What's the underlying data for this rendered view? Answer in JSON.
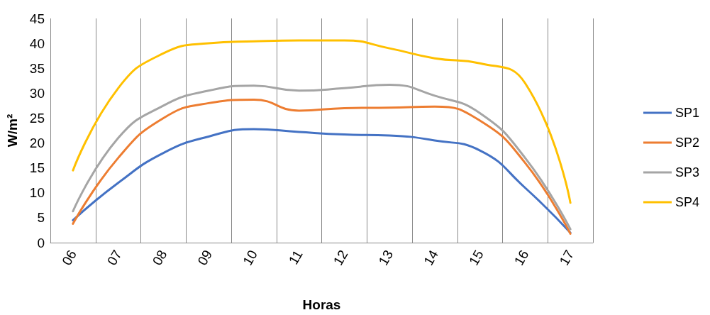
{
  "chart_data": {
    "type": "line",
    "xlabel": "Horas",
    "ylabel": "W/m²",
    "categories": [
      "06",
      "07",
      "08",
      "09",
      "10",
      "11",
      "12",
      "13",
      "14",
      "15",
      "16",
      "17"
    ],
    "series": [
      {
        "name": "SP1",
        "color": "#4472c4",
        "values": [
          4.5,
          12,
          18,
          21.3,
          22.8,
          22.2,
          21.7,
          21.5,
          20.5,
          18.5,
          11,
          2
        ]
      },
      {
        "name": "SP2",
        "color": "#ed7d31",
        "values": [
          3.8,
          17,
          25,
          28,
          28.7,
          26.5,
          27,
          27.1,
          27.3,
          24.5,
          16,
          1.8
        ]
      },
      {
        "name": "SP3",
        "color": "#a5a5a5",
        "values": [
          6.3,
          21,
          27.5,
          30.5,
          31.5,
          30.5,
          31,
          31.7,
          29.5,
          26,
          17,
          2.7
        ]
      },
      {
        "name": "SP4",
        "color": "#ffc000",
        "values": [
          14.5,
          31,
          38,
          40,
          40.4,
          40.6,
          40.6,
          39,
          37,
          36,
          32,
          8
        ]
      }
    ],
    "ylim": [
      0,
      45
    ],
    "yticks": [
      0,
      5,
      10,
      15,
      20,
      25,
      30,
      35,
      40,
      45
    ],
    "grid": "x",
    "legend": "right",
    "marker": "none",
    "line_style": "solid"
  }
}
